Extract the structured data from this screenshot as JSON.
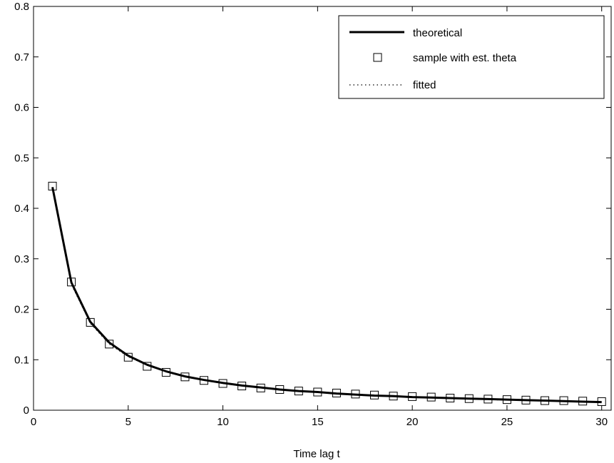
{
  "chart_data": {
    "type": "line",
    "title": "",
    "xlabel": "Time lag t",
    "ylabel": "",
    "xlim": [
      0,
      30.5
    ],
    "ylim": [
      0,
      0.8
    ],
    "xticks": [
      0,
      5,
      10,
      15,
      20,
      25,
      30
    ],
    "yticks": [
      0,
      0.1,
      0.2,
      0.3,
      0.4,
      0.5,
      0.6,
      0.7,
      0.8
    ],
    "xtick_labels": [
      "0",
      "5",
      "10",
      "15",
      "20",
      "25",
      "30"
    ],
    "ytick_labels": [
      "0",
      "0.1",
      "0.2",
      "0.3",
      "0.4",
      "0.5",
      "0.6",
      "0.7",
      "0.8"
    ],
    "grid": false,
    "legend_position": "top-right",
    "x": [
      1,
      2,
      3,
      4,
      5,
      6,
      7,
      8,
      9,
      10,
      11,
      12,
      13,
      14,
      15,
      16,
      17,
      18,
      19,
      20,
      21,
      22,
      23,
      24,
      25,
      26,
      27,
      28,
      29,
      30
    ],
    "series": [
      {
        "name": "theoretical",
        "style": "solid",
        "color": "#000000",
        "values": [
          0.442,
          0.253,
          0.175,
          0.134,
          0.108,
          0.09,
          0.077,
          0.067,
          0.06,
          0.054,
          0.049,
          0.045,
          0.041,
          0.038,
          0.036,
          0.033,
          0.031,
          0.029,
          0.028,
          0.026,
          0.025,
          0.024,
          0.023,
          0.022,
          0.021,
          0.02,
          0.019,
          0.018,
          0.017,
          0.016
        ]
      },
      {
        "name": "sample with est. theta",
        "style": "square-markers",
        "color": "#000000",
        "values": [
          0.444,
          0.254,
          0.174,
          0.131,
          0.105,
          0.087,
          0.075,
          0.066,
          0.059,
          0.053,
          0.048,
          0.044,
          0.041,
          0.038,
          0.036,
          0.034,
          0.032,
          0.03,
          0.028,
          0.027,
          0.026,
          0.024,
          0.023,
          0.022,
          0.021,
          0.02,
          0.019,
          0.019,
          0.018,
          0.017
        ]
      },
      {
        "name": "fitted",
        "style": "dotted",
        "color": "#000000",
        "values": [
          0.438,
          0.249,
          0.172,
          0.131,
          0.106,
          0.089,
          0.076,
          0.067,
          0.059,
          0.053,
          0.048,
          0.044,
          0.041,
          0.038,
          0.035,
          0.033,
          0.031,
          0.029,
          0.027,
          0.026,
          0.025,
          0.024,
          0.022,
          0.021,
          0.02,
          0.02,
          0.019,
          0.018,
          0.017,
          0.016
        ]
      }
    ]
  }
}
